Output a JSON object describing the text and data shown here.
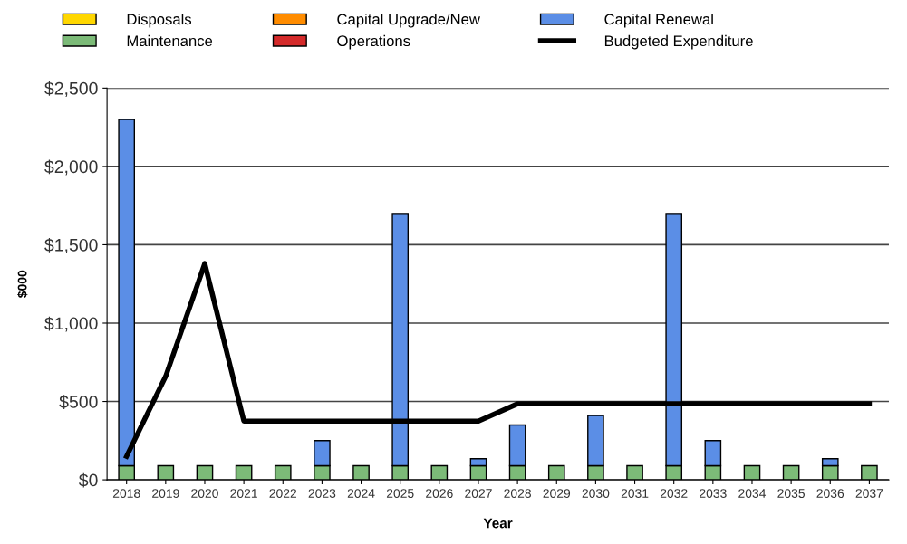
{
  "chart_data": {
    "type": "bar",
    "stacked": true,
    "xlabel": "Year",
    "ylabel": "$000",
    "categories": [
      "2018",
      "2019",
      "2020",
      "2021",
      "2022",
      "2023",
      "2024",
      "2025",
      "2026",
      "2027",
      "2028",
      "2029",
      "2030",
      "2031",
      "2032",
      "2033",
      "2034",
      "2035",
      "2036",
      "2037"
    ],
    "series": [
      {
        "name": "Disposals",
        "color": "#ffd700",
        "values": [
          0,
          0,
          0,
          0,
          0,
          0,
          0,
          0,
          0,
          0,
          0,
          0,
          0,
          0,
          0,
          0,
          0,
          0,
          0,
          0
        ]
      },
      {
        "name": "Maintenance",
        "color": "#7cbb78",
        "values": [
          90,
          90,
          90,
          90,
          90,
          90,
          90,
          90,
          90,
          90,
          90,
          90,
          90,
          90,
          90,
          90,
          90,
          90,
          90,
          90
        ]
      },
      {
        "name": "Capital Upgrade/New",
        "color": "#ff8c00",
        "values": [
          0,
          0,
          0,
          0,
          0,
          0,
          0,
          0,
          0,
          0,
          0,
          0,
          0,
          0,
          0,
          0,
          0,
          0,
          0,
          0
        ]
      },
      {
        "name": "Operations",
        "color": "#d42a2a",
        "values": [
          0,
          0,
          0,
          0,
          0,
          0,
          0,
          0,
          0,
          0,
          0,
          0,
          0,
          0,
          0,
          0,
          0,
          0,
          0,
          0
        ]
      },
      {
        "name": "Capital Renewal",
        "color": "#5b8ee6",
        "values": [
          2210,
          0,
          0,
          0,
          0,
          160,
          0,
          1610,
          0,
          45,
          260,
          0,
          320,
          0,
          1610,
          160,
          0,
          0,
          45,
          0
        ]
      },
      {
        "name": "Budgeted Expenditure",
        "type": "line",
        "color": "#000000",
        "values": [
          150,
          660,
          1380,
          375,
          375,
          375,
          375,
          375,
          375,
          375,
          485,
          485,
          485,
          485,
          485,
          485,
          485,
          485,
          485,
          485
        ]
      }
    ],
    "ylim": [
      0,
      2500
    ],
    "yticks": [
      {
        "value": 0,
        "label": "$0"
      },
      {
        "value": 500,
        "label": "$500"
      },
      {
        "value": 1000,
        "label": "$1,000"
      },
      {
        "value": 1500,
        "label": "$1,500"
      },
      {
        "value": 2000,
        "label": "$2,000"
      },
      {
        "value": 2500,
        "label": "$2,500"
      }
    ],
    "grid": "y",
    "legend": "top"
  }
}
